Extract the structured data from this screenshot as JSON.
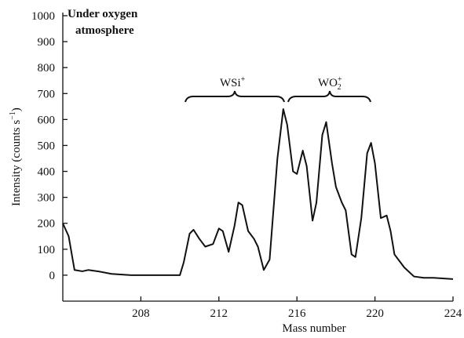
{
  "chart_data": {
    "type": "line",
    "annotation_lines": [
      "Under oxygen",
      "atmosphere"
    ],
    "peak_labels": [
      {
        "base": "WSi",
        "sup": "+"
      },
      {
        "base": "WO",
        "sub": "2",
        "sup": "+"
      }
    ],
    "xlabel": "Mass number",
    "ylabel": {
      "base": "Intensity (counts s",
      "sup": "−1",
      "end": ")"
    },
    "color": "#111111",
    "x": [
      204.0,
      204.3,
      204.6,
      205.0,
      205.3,
      205.8,
      206.5,
      207.5,
      208.5,
      209.5,
      210.0,
      210.2,
      210.5,
      210.7,
      211.0,
      211.3,
      211.7,
      212.0,
      212.2,
      212.5,
      212.8,
      213.0,
      213.2,
      213.5,
      213.8,
      214.0,
      214.3,
      214.6,
      215.0,
      215.3,
      215.5,
      215.8,
      216.0,
      216.3,
      216.5,
      216.8,
      217.0,
      217.3,
      217.5,
      217.8,
      218.0,
      218.3,
      218.5,
      218.8,
      219.0,
      219.3,
      219.6,
      219.8,
      220.0,
      220.3,
      220.6,
      220.8,
      221.0,
      221.5,
      222.0,
      222.5,
      223.0,
      224.0
    ],
    "values": [
      200,
      150,
      20,
      15,
      20,
      15,
      5,
      0,
      0,
      0,
      0,
      50,
      160,
      175,
      140,
      110,
      120,
      180,
      170,
      90,
      190,
      280,
      270,
      170,
      140,
      110,
      20,
      60,
      450,
      640,
      580,
      400,
      390,
      480,
      420,
      210,
      280,
      540,
      590,
      430,
      340,
      280,
      250,
      80,
      70,
      220,
      470,
      510,
      430,
      220,
      230,
      170,
      80,
      30,
      -5,
      -10,
      -10,
      -15
    ],
    "xlim": [
      204,
      224
    ],
    "xticks": [
      208,
      212,
      216,
      220,
      224
    ],
    "ylim": [
      -100,
      1000
    ],
    "yticks": [
      0,
      100,
      200,
      300,
      400,
      500,
      600,
      700,
      800,
      900,
      1000
    ]
  }
}
